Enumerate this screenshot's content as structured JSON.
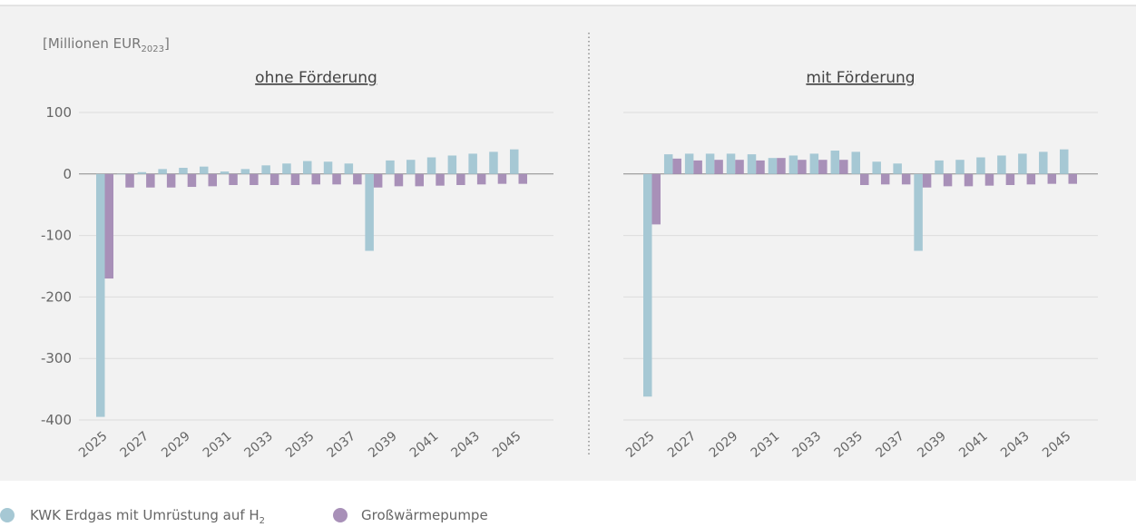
{
  "colors": {
    "series_a": "#a6c8d4",
    "series_b": "#a890b8",
    "panel_bg": "#f2f2f2"
  },
  "chart_data": [
    {
      "type": "bar",
      "title": "ohne Förderung",
      "ylabel": "[Millionen EUR2023]",
      "ylim": [
        -400,
        100
      ],
      "yticks": [
        100,
        0,
        -100,
        -200,
        -300,
        -400
      ],
      "x": [
        2025,
        2026,
        2027,
        2028,
        2029,
        2030,
        2031,
        2032,
        2033,
        2034,
        2035,
        2036,
        2037,
        2038,
        2039,
        2040,
        2041,
        2042,
        2043,
        2044,
        2045
      ],
      "x_tick_labels": [
        "2025",
        "2027",
        "2029",
        "2031",
        "2033",
        "2035",
        "2037",
        "2039",
        "2041",
        "2043",
        "2045"
      ],
      "grid": true,
      "series": [
        {
          "name": "KWK Erdgas mit Umrüstung auf H2",
          "values": [
            -395,
            0,
            3,
            8,
            10,
            12,
            4,
            8,
            14,
            17,
            21,
            20,
            17,
            -125,
            22,
            23,
            27,
            30,
            33,
            36,
            40
          ]
        },
        {
          "name": "Großwärmepumpe",
          "values": [
            -170,
            -22,
            -22,
            -22,
            -21,
            -20,
            -18,
            -18,
            -18,
            -18,
            -17,
            -17,
            -17,
            -22,
            -20,
            -20,
            -19,
            -18,
            -17,
            -16,
            -16
          ]
        }
      ]
    },
    {
      "type": "bar",
      "title": "mit Förderung",
      "ylim": [
        -400,
        100
      ],
      "x": [
        2025,
        2026,
        2027,
        2028,
        2029,
        2030,
        2031,
        2032,
        2033,
        2034,
        2035,
        2036,
        2037,
        2038,
        2039,
        2040,
        2041,
        2042,
        2043,
        2044,
        2045
      ],
      "x_tick_labels": [
        "2025",
        "2027",
        "2029",
        "2031",
        "2033",
        "2035",
        "2037",
        "2039",
        "2041",
        "2043",
        "2045"
      ],
      "grid": true,
      "series": [
        {
          "name": "KWK Erdgas mit Umrüstung auf H2",
          "values": [
            -362,
            32,
            33,
            33,
            33,
            32,
            26,
            30,
            33,
            38,
            36,
            20,
            17,
            -125,
            22,
            23,
            27,
            30,
            33,
            36,
            40
          ]
        },
        {
          "name": "Großwärmepumpe",
          "values": [
            -82,
            25,
            22,
            23,
            23,
            22,
            26,
            23,
            23,
            23,
            -18,
            -17,
            -17,
            -22,
            -20,
            -20,
            -19,
            -18,
            -17,
            -16,
            -16
          ]
        }
      ]
    }
  ],
  "unit_label": {
    "main": "[Millionen EUR",
    "sub": "2023",
    "close": "]"
  },
  "legend": [
    {
      "main": "KWK Erdgas mit Umrüstung auf H",
      "sub": "2"
    },
    {
      "main": "Großwärmepumpe",
      "sub": ""
    }
  ]
}
